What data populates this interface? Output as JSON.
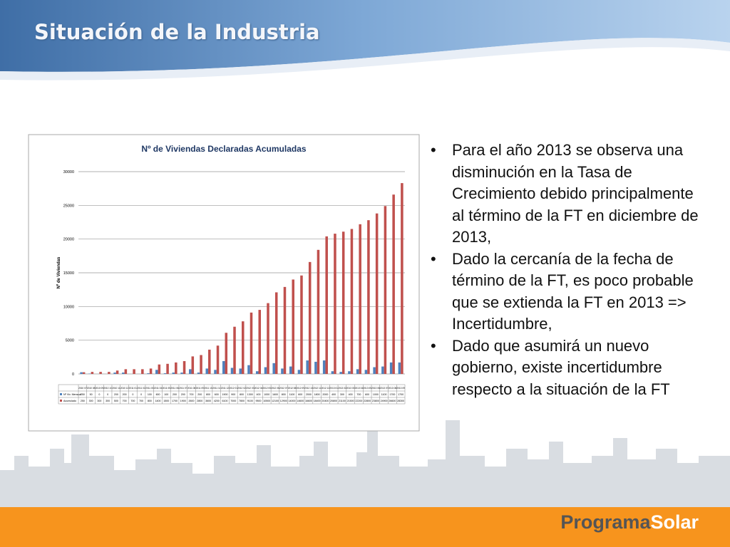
{
  "header": {
    "title": "Situación de la Industria"
  },
  "chart_data": {
    "type": "bar",
    "title": "Nº de Viviendas Declaradas Acumuladas",
    "y_label": "Nº de Viviendas",
    "categories": [
      "2010 07",
      "2010 08",
      "2010 09",
      "2010 10",
      "2010 11",
      "2010 12",
      "2011 01",
      "2011 02",
      "2011 03",
      "2011 04",
      "2011 05",
      "2011 06",
      "2011 07",
      "2011 08",
      "2011 09",
      "2011 10",
      "2011 11",
      "2011 12",
      "2012 01",
      "2012 02",
      "2012 03",
      "2012 04",
      "2012 05",
      "2012 06",
      "2012 07",
      "2012 08",
      "2012 09",
      "2012 10",
      "2012 11",
      "2012 12",
      "2013 01",
      "2013 02",
      "2013 03",
      "2013 04",
      "2013 05",
      "2013 06",
      "2013 07",
      "2013 08",
      "2013 09"
    ],
    "series": [
      {
        "name": "Nº Viv. Mensual",
        "color": "#4f81bd",
        "values": [
          250,
          50,
          0,
          0,
          200,
          200,
          0,
          0,
          100,
          600,
          100,
          200,
          200,
          700,
          200,
          800,
          600,
          1900,
          900,
          800,
          1300,
          400,
          1000,
          1600,
          800,
          1100,
          600,
          2000,
          1800,
          2000,
          400,
          300,
          400,
          700,
          600,
          1000,
          1100,
          1700,
          1700
        ]
      },
      {
        "name": "Acumulado",
        "color": "#c0504d",
        "values": [
          250,
          300,
          300,
          300,
          500,
          700,
          700,
          700,
          800,
          1400,
          1500,
          1700,
          1900,
          2600,
          2800,
          3600,
          4200,
          6100,
          7000,
          7800,
          9100,
          9500,
          10500,
          12100,
          12900,
          14000,
          14600,
          16600,
          18400,
          20400,
          20800,
          21100,
          21500,
          22200,
          22800,
          23800,
          24900,
          26600,
          28300
        ]
      }
    ],
    "ylim": [
      0,
      30000
    ],
    "yticks": [
      0,
      5000,
      10000,
      15000,
      20000,
      25000,
      30000
    ],
    "grid": true
  },
  "bullets": [
    "Para el año 2013 se  observa una disminución en la Tasa de Crecimiento debido principalmente al término de la FT en diciembre de 2013,",
    "Dado la cercanía de la fecha de término de la FT, es poco probable que se extienda la FT en 2013 => Incertidumbre,",
    "Dado que asumirá un nuevo gobierno, existe incertidumbre respecto a la situación de la FT"
  ],
  "brand": {
    "part1": "Programa",
    "part2": "Solar"
  }
}
